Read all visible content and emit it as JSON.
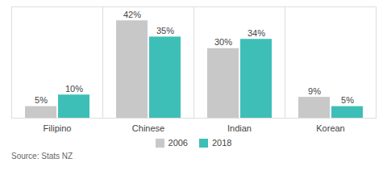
{
  "chart_data": {
    "type": "bar",
    "categories": [
      "Filipino",
      "Chinese",
      "Indian",
      "Korean"
    ],
    "series": [
      {
        "name": "2006",
        "color": "#c8c8c8",
        "values": [
          5,
          42,
          30,
          9
        ],
        "value_labels": [
          "5%",
          "42%",
          "30%",
          "9%"
        ]
      },
      {
        "name": "2018",
        "color": "#3dbfb8",
        "values": [
          10,
          35,
          34,
          5
        ],
        "value_labels": [
          "10%",
          "35%",
          "34%",
          "5%"
        ]
      }
    ],
    "ylim": [
      0,
      48
    ],
    "grid": false,
    "legend": "bottom",
    "data_labels": true,
    "tick_labels": "x",
    "annotations": [
      "Source: Stats NZ"
    ]
  }
}
